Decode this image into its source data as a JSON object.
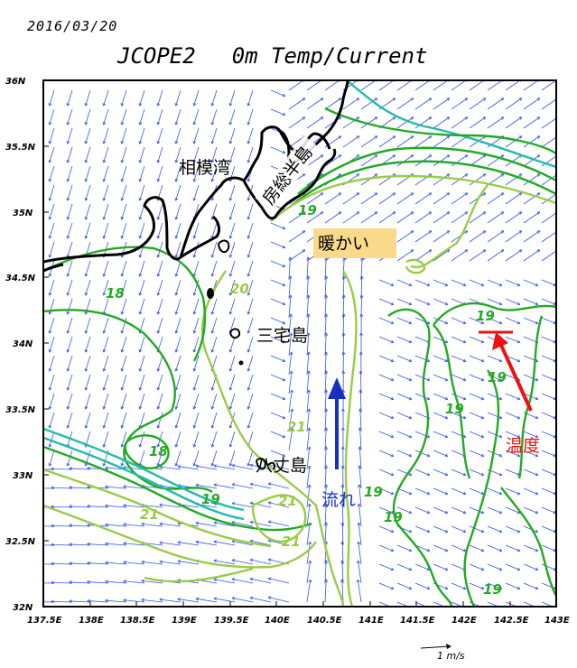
{
  "date": "2016/03/20",
  "title": {
    "model": "JCOPE2",
    "depth_var": "0m Temp/Current"
  },
  "axes": {
    "lat_labels": [
      "36N",
      "35.5N",
      "35N",
      "34.5N",
      "34N",
      "33.5N",
      "33N",
      "32.5N",
      "32N"
    ],
    "lon_labels": [
      "137.5E",
      "138E",
      "138.5E",
      "139E",
      "139.5E",
      "140E",
      "140.5E",
      "141E",
      "141.5E",
      "142E",
      "142.5E",
      "143E"
    ]
  },
  "place_labels": {
    "sagami_bay": "相模湾",
    "boso_peninsula": "房総半島",
    "miyake_island": "三宅島",
    "hachijo_island": "八丈島",
    "warm": "暖かい",
    "flow": "流れ",
    "temperature": "温度"
  },
  "contour_labels": [
    {
      "text": "19",
      "color": "#22aa22"
    },
    {
      "text": "20",
      "color": "#99cc44"
    },
    {
      "text": "18",
      "color": "#22aa22"
    },
    {
      "text": "18",
      "color": "#22aa22"
    },
    {
      "text": "21",
      "color": "#99cc44"
    },
    {
      "text": "21",
      "color": "#99cc44"
    },
    {
      "text": "21",
      "color": "#99cc44"
    },
    {
      "text": "21",
      "color": "#99cc44"
    },
    {
      "text": "19",
      "color": "#22aa22"
    },
    {
      "text": "19",
      "color": "#22aa22"
    },
    {
      "text": "19",
      "color": "#22aa22"
    },
    {
      "text": "19",
      "color": "#22aa22"
    },
    {
      "text": "19",
      "color": "#22aa22"
    },
    {
      "text": "19",
      "color": "#22aa22"
    },
    {
      "text": "19",
      "color": "#22aa22"
    }
  ],
  "scale_label": "1 m/s",
  "colors": {
    "frame": "#000000",
    "vectors": "#3355ee",
    "contour_dark": "#22aa22",
    "contour_light": "#99cc44",
    "contour_teal": "#22bbaa",
    "warm_highlight": "#f9d98a",
    "flow_arrow": "#1530c0",
    "temp_arrow": "#ee1111"
  }
}
